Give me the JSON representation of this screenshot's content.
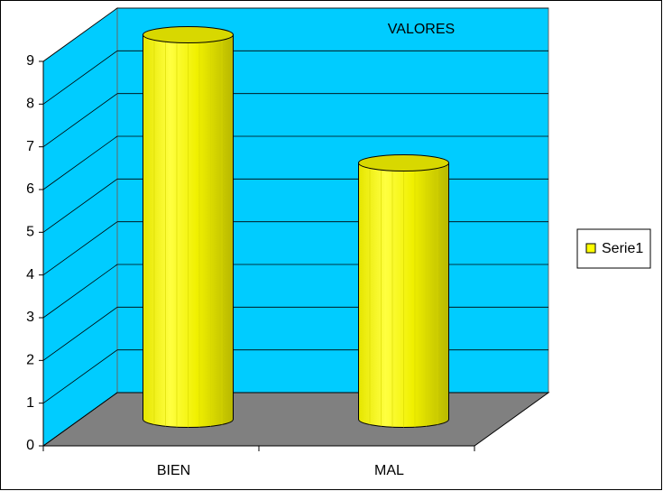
{
  "chart_data": {
    "type": "bar",
    "title": "VALORES",
    "categories": [
      "BIEN",
      "MAL"
    ],
    "series": [
      {
        "name": "Serie1",
        "color": "#ffff00",
        "values": [
          9,
          6
        ]
      }
    ],
    "ylim": [
      0,
      9
    ],
    "yticks": [
      0,
      1,
      2,
      3,
      4,
      5,
      6,
      7,
      8,
      9
    ],
    "grid": true,
    "legend": "right"
  }
}
